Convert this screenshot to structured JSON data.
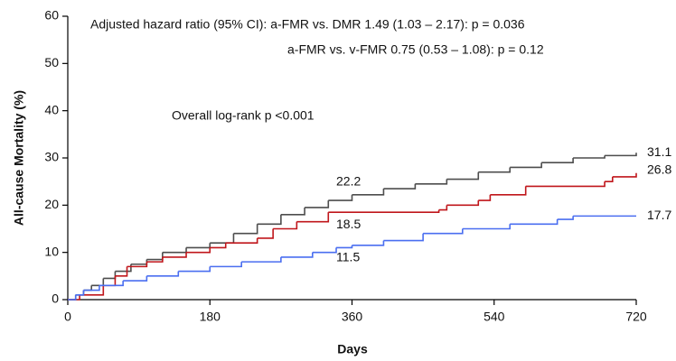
{
  "chart_data": {
    "type": "step",
    "x_label": "Days",
    "y_label": "All-cause Mortality (%)",
    "xlim": [
      0,
      720
    ],
    "xticks": [
      0,
      180,
      360,
      540,
      720
    ],
    "ylim": [
      0,
      60
    ],
    "yticks": [
      0,
      10,
      20,
      30,
      40,
      50,
      60
    ],
    "notes": [
      "Adjusted hazard ratio (95% CI): a-FMR vs. DMR 1.49 (1.03 – 2.17): p = 0.036",
      "a-FMR vs. v-FMR 0.75 (0.53 – 1.08): p = 0.12",
      "Overall log-rank p <0.001"
    ],
    "series": [
      {
        "color": "#4d4d4d",
        "x": [
          0,
          10,
          20,
          30,
          45,
          60,
          80,
          100,
          120,
          150,
          180,
          210,
          240,
          270,
          300,
          330,
          360,
          400,
          440,
          480,
          520,
          560,
          600,
          640,
          680,
          720
        ],
        "values": [
          0,
          1,
          2,
          3,
          4.5,
          6,
          7.5,
          8.5,
          10,
          11,
          12,
          14,
          16,
          18,
          19.5,
          21,
          22.2,
          23.5,
          24.5,
          25.5,
          27,
          28,
          29,
          30,
          30.5,
          31.1
        ],
        "annotations": [
          {
            "x": 340,
            "value": 22.2
          },
          {
            "x": 720,
            "value": 31.1
          }
        ]
      },
      {
        "color": "#c0161b",
        "x": [
          0,
          15,
          45,
          60,
          75,
          100,
          120,
          150,
          180,
          200,
          240,
          260,
          290,
          330,
          470,
          480,
          520,
          535,
          580,
          680,
          690,
          720
        ],
        "values": [
          0,
          1,
          3,
          5,
          7,
          8,
          9,
          10,
          11,
          12,
          13,
          15,
          16.5,
          18.5,
          19,
          20,
          21,
          22.2,
          24,
          25,
          26,
          26.8
        ],
        "annotations": [
          {
            "x": 340,
            "value": 18.5
          },
          {
            "x": 720,
            "value": 26.8
          }
        ]
      },
      {
        "color": "#4a6ef0",
        "x": [
          0,
          10,
          20,
          40,
          70,
          100,
          140,
          180,
          220,
          270,
          310,
          340,
          360,
          400,
          450,
          500,
          560,
          620,
          640,
          720
        ],
        "values": [
          0,
          1,
          2,
          3,
          4,
          5,
          6,
          7,
          8,
          9,
          10,
          11,
          11.5,
          12.5,
          14,
          15,
          16,
          17,
          17.7,
          17.7
        ],
        "annotations": [
          {
            "x": 340,
            "value": 11.5
          },
          {
            "x": 720,
            "value": 17.7
          }
        ]
      }
    ]
  }
}
